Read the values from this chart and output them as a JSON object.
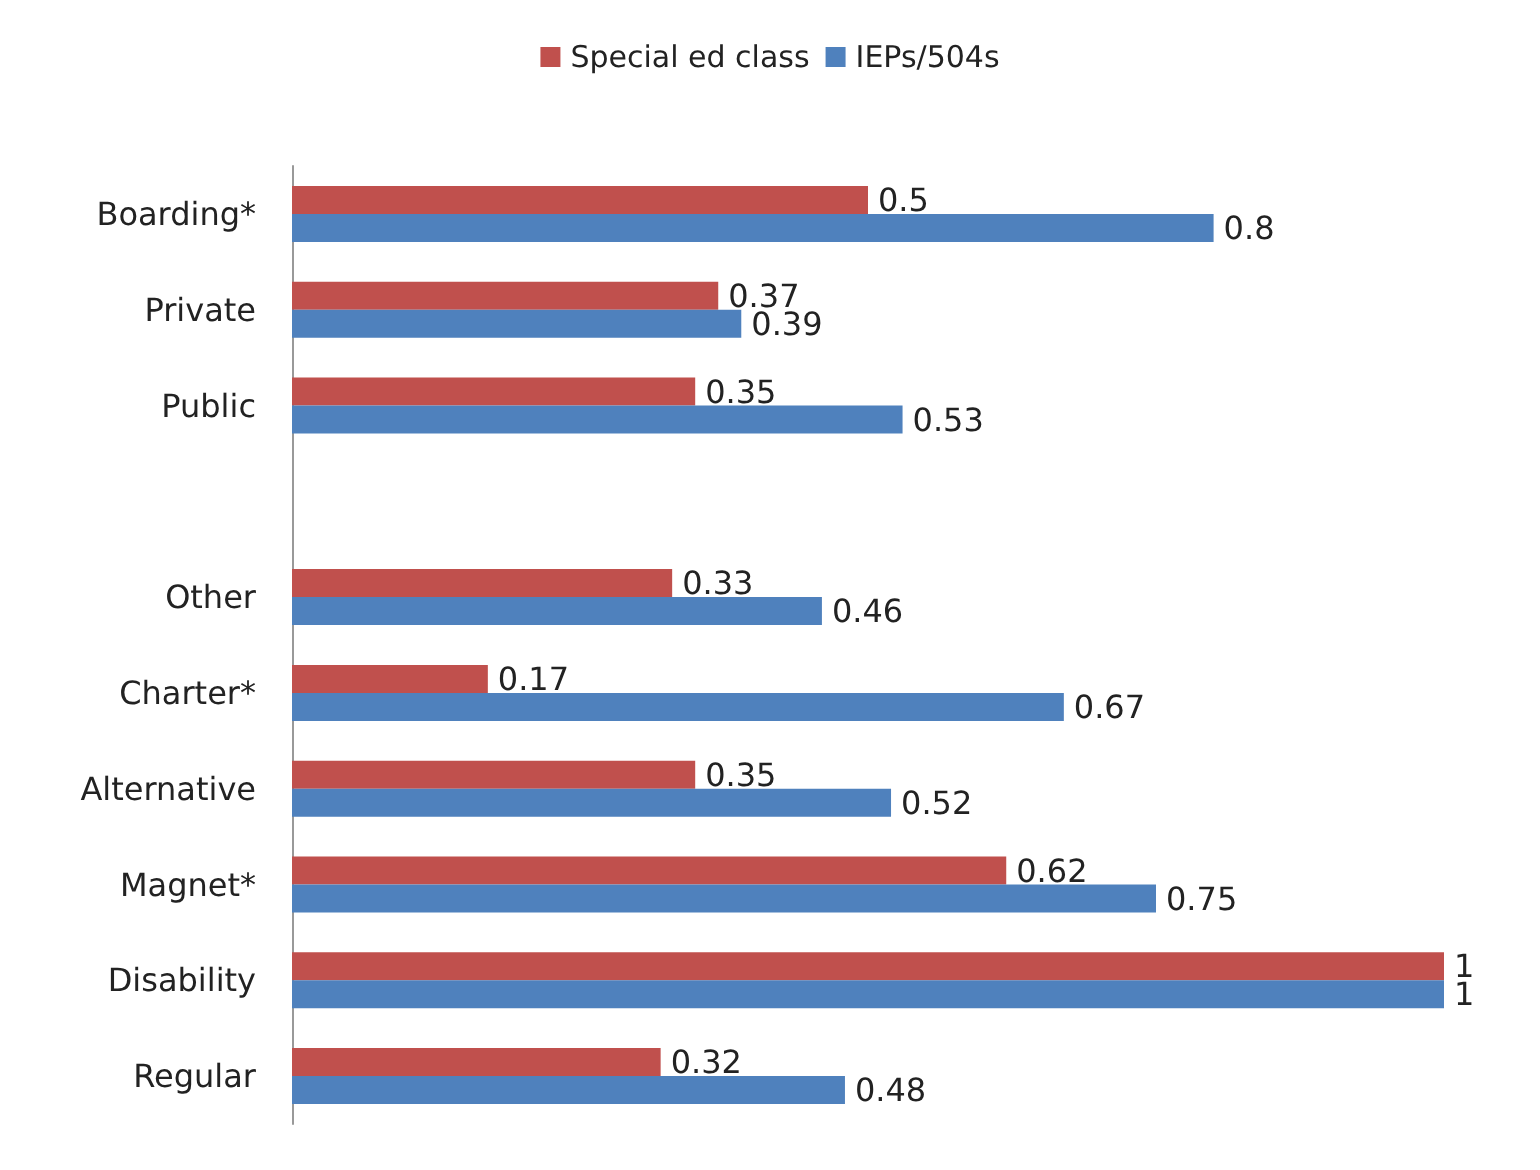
{
  "chart_data": {
    "type": "bar",
    "orientation": "horizontal",
    "categories": [
      "Boarding*",
      "Private",
      "Public",
      null,
      "Other",
      "Charter*",
      "Alternative",
      "Magnet*",
      "Disability",
      "Regular"
    ],
    "series": [
      {
        "name": "Special ed class",
        "color": "#c0504d",
        "values": [
          0.5,
          0.37,
          0.35,
          null,
          0.33,
          0.17,
          0.35,
          0.62,
          1,
          0.32
        ]
      },
      {
        "name": "IEPs/504s",
        "color": "#4f81bd",
        "values": [
          0.8,
          0.39,
          0.53,
          null,
          0.46,
          0.67,
          0.52,
          0.75,
          1,
          0.48
        ]
      }
    ],
    "data_labels": true,
    "legend": "top",
    "grid": false
  }
}
